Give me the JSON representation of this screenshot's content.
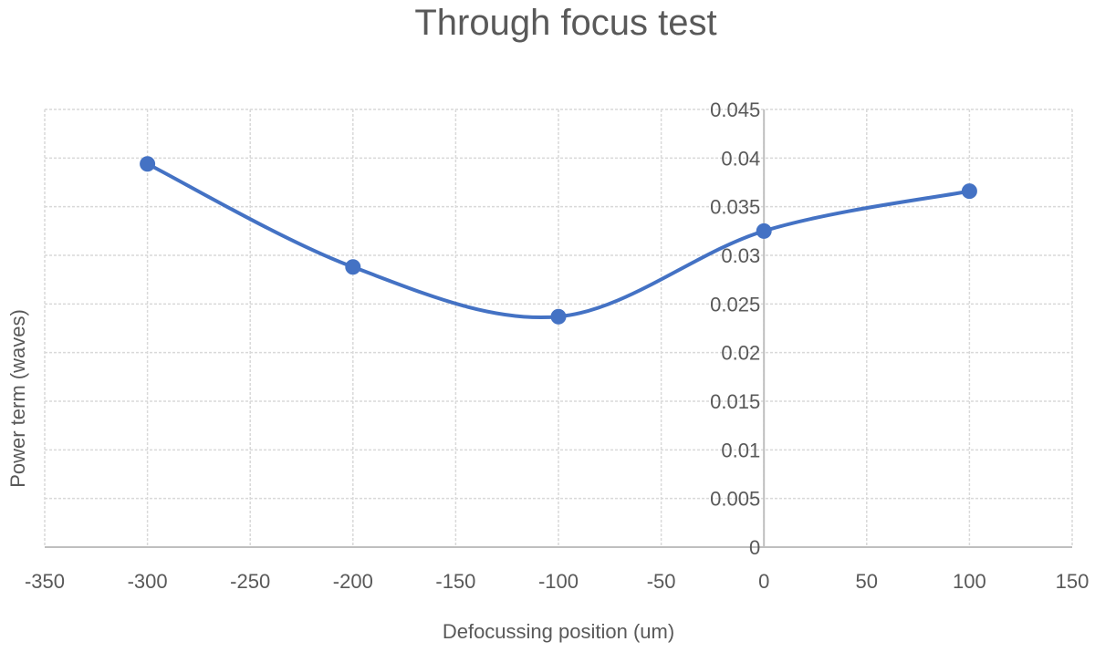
{
  "chart_data": {
    "type": "scatter",
    "title": "Through focus test",
    "xlabel": "Defocussing position (um)",
    "ylabel": "Power term (waves)",
    "xlim": [
      -350,
      150
    ],
    "ylim": [
      0,
      0.045
    ],
    "x_ticks": [
      "-350",
      "-300",
      "-250",
      "-200",
      "-150",
      "-100",
      "-50",
      "0",
      "50",
      "100",
      "150"
    ],
    "y_ticks": [
      "0",
      "0.005",
      "0.01",
      "0.015",
      "0.02",
      "0.025",
      "0.03",
      "0.035",
      "0.04",
      "0.045"
    ],
    "grid": true,
    "smoothed_line": true,
    "series": [
      {
        "color": "#4472c4",
        "x": [
          -300,
          -200,
          -100,
          0,
          100
        ],
        "y": [
          0.0394,
          0.0288,
          0.0237,
          0.0325,
          0.0366
        ]
      }
    ]
  }
}
